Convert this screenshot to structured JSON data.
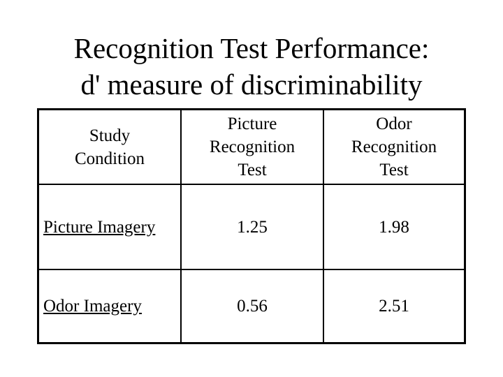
{
  "title": [
    "Recognition Test Performance:",
    "d' measure of discriminability"
  ],
  "table": {
    "header": [
      [
        "Study",
        "Condition"
      ],
      [
        "Picture",
        "Recognition",
        "Test"
      ],
      [
        "Odor",
        "Recognition",
        "Test"
      ]
    ],
    "rows": [
      [
        "Picture Imagery",
        1.25,
        1.98
      ],
      [
        "Odor Imagery",
        0.56,
        2.51
      ]
    ]
  }
}
